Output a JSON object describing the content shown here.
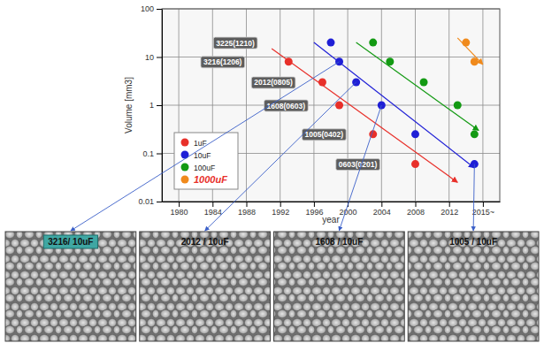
{
  "chart_data": {
    "type": "scatter",
    "x_label": "year",
    "y_label": "Volume [mm3]",
    "log": "y",
    "grid": true,
    "legend": "lower left",
    "xlim": [
      1978,
      2018
    ],
    "xticks": [
      1980,
      1984,
      1988,
      1992,
      1996,
      2000,
      2004,
      2008,
      2012,
      {
        "value": 2016,
        "label": "2015~"
      }
    ],
    "ylim": [
      0.01,
      100
    ],
    "yticks": [
      0.01,
      0.1,
      1,
      10,
      100
    ],
    "series": [
      {
        "name": "1uF",
        "color": "#e8302a",
        "marker": "circle",
        "x": [
          1993,
          1997,
          1999,
          2003,
          2008
        ],
        "values": [
          8,
          3,
          1,
          0.25,
          0.06
        ],
        "trend": [
          [
            1991,
            15
          ],
          [
            2013,
            0.025
          ]
        ]
      },
      {
        "name": "10uF",
        "color": "#1f1fd6",
        "marker": "circle",
        "x": [
          1998,
          1999,
          2001,
          2004,
          2008,
          2015
        ],
        "values": [
          20,
          8,
          3,
          1,
          0.25,
          0.06
        ],
        "trend": [
          [
            1996,
            20
          ],
          [
            2015,
            0.05
          ]
        ]
      },
      {
        "name": "100uF",
        "color": "#139a13",
        "marker": "circle",
        "x": [
          2003,
          2005,
          2009,
          2013,
          2015
        ],
        "values": [
          20,
          8,
          3,
          1,
          0.25
        ],
        "trend": [
          [
            2001,
            20
          ],
          [
            2015.5,
            0.3
          ]
        ]
      },
      {
        "name": "1000uF",
        "color": "#f08a1c",
        "marker": "circle",
        "x": [
          2014,
          2015
        ],
        "values": [
          20,
          8
        ],
        "trend": [
          [
            2013,
            25
          ],
          [
            2016,
            7
          ]
        ]
      }
    ],
    "annotations": [
      {
        "text": "3225(1210)",
        "x": 1984,
        "y": 20
      },
      {
        "text": "3216(1206)",
        "x": 1982.5,
        "y": 8
      },
      {
        "text": "2012(0805)",
        "x": 1988.5,
        "y": 3
      },
      {
        "text": "1608(0603)",
        "x": 1990,
        "y": 1
      },
      {
        "text": "1005(0402)",
        "x": 1994.5,
        "y": 0.25
      },
      {
        "text": "0603(0201)",
        "x": 1998.5,
        "y": 0.06
      }
    ],
    "panels": [
      "3216/ 10uF",
      "2012 / 10uF",
      "1608 / 10uF",
      "1005 / 10uF"
    ]
  }
}
